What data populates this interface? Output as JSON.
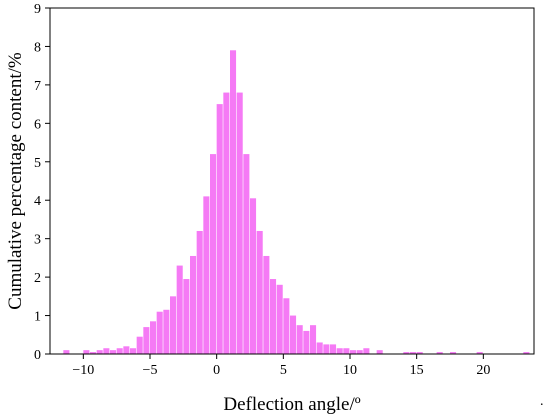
{
  "chart_data": {
    "type": "bar",
    "title": "",
    "xlabel": "Deflection angle/º",
    "ylabel": "Cumulative percentage content/%",
    "xlim": [
      -12.5,
      23.8
    ],
    "ylim": [
      0,
      9
    ],
    "xticks": [
      -10,
      -5,
      0,
      5,
      10,
      15,
      20
    ],
    "yticks": [
      0,
      1,
      2,
      3,
      4,
      5,
      6,
      7,
      8,
      9
    ],
    "grid": false,
    "legend": "none",
    "bar_color": "#f57af5",
    "bin_width": 0.5,
    "bins": [
      {
        "x": -11.5,
        "value": 0.1
      },
      {
        "x": -10.0,
        "value": 0.1
      },
      {
        "x": -9.5,
        "value": 0.05
      },
      {
        "x": -9.0,
        "value": 0.1
      },
      {
        "x": -8.5,
        "value": 0.15
      },
      {
        "x": -8.0,
        "value": 0.1
      },
      {
        "x": -7.5,
        "value": 0.15
      },
      {
        "x": -7.0,
        "value": 0.2
      },
      {
        "x": -6.5,
        "value": 0.15
      },
      {
        "x": -6.0,
        "value": 0.45
      },
      {
        "x": -5.5,
        "value": 0.7
      },
      {
        "x": -5.0,
        "value": 0.85
      },
      {
        "x": -4.5,
        "value": 1.1
      },
      {
        "x": -4.0,
        "value": 1.15
      },
      {
        "x": -3.5,
        "value": 1.5
      },
      {
        "x": -3.0,
        "value": 2.3
      },
      {
        "x": -2.5,
        "value": 1.95
      },
      {
        "x": -2.0,
        "value": 2.55
      },
      {
        "x": -1.5,
        "value": 3.2
      },
      {
        "x": -1.0,
        "value": 4.1
      },
      {
        "x": -0.5,
        "value": 5.2
      },
      {
        "x": 0.0,
        "value": 6.5
      },
      {
        "x": 0.5,
        "value": 6.8
      },
      {
        "x": 1.0,
        "value": 7.9
      },
      {
        "x": 1.5,
        "value": 6.8
      },
      {
        "x": 2.0,
        "value": 5.2
      },
      {
        "x": 2.5,
        "value": 4.05
      },
      {
        "x": 3.0,
        "value": 3.2
      },
      {
        "x": 3.5,
        "value": 2.55
      },
      {
        "x": 4.0,
        "value": 1.95
      },
      {
        "x": 4.5,
        "value": 1.8
      },
      {
        "x": 5.0,
        "value": 1.45
      },
      {
        "x": 5.5,
        "value": 1.0
      },
      {
        "x": 6.0,
        "value": 0.75
      },
      {
        "x": 6.5,
        "value": 0.6
      },
      {
        "x": 7.0,
        "value": 0.75
      },
      {
        "x": 7.5,
        "value": 0.3
      },
      {
        "x": 8.0,
        "value": 0.25
      },
      {
        "x": 8.5,
        "value": 0.25
      },
      {
        "x": 9.0,
        "value": 0.15
      },
      {
        "x": 9.5,
        "value": 0.15
      },
      {
        "x": 10.0,
        "value": 0.1
      },
      {
        "x": 10.5,
        "value": 0.1
      },
      {
        "x": 11.0,
        "value": 0.15
      },
      {
        "x": 12.0,
        "value": 0.1
      },
      {
        "x": 14.0,
        "value": 0.05
      },
      {
        "x": 14.5,
        "value": 0.05
      },
      {
        "x": 15.0,
        "value": 0.05
      },
      {
        "x": 16.5,
        "value": 0.05
      },
      {
        "x": 17.5,
        "value": 0.05
      },
      {
        "x": 19.5,
        "value": 0.05
      },
      {
        "x": 23.0,
        "value": 0.05
      }
    ]
  },
  "footnote": "."
}
